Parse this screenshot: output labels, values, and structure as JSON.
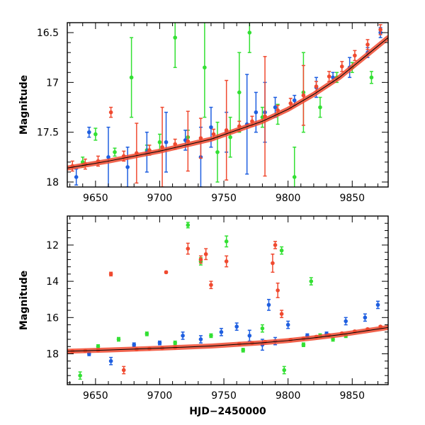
{
  "colors": {
    "green": "#33e033",
    "blue": "#1f5fe0",
    "red": "#f04a30",
    "axis": "#000000",
    "background": "#ffffff"
  },
  "chart_data": [
    {
      "type": "scatter",
      "panel": "top",
      "title": "",
      "xlabel": "",
      "ylabel": "Magnitude",
      "xlim": [
        9628,
        9878
      ],
      "ylim": [
        18.05,
        16.4
      ],
      "y_inverted": true,
      "xticks": [
        9650,
        9700,
        9750,
        9800,
        9850
      ],
      "xtick_labels": [
        "9650",
        "9700",
        "9750",
        "9800",
        "9850"
      ],
      "yticks": [
        16.5,
        17,
        17.5,
        18
      ],
      "ytick_labels": [
        "16.5",
        "17",
        "17.5",
        "18"
      ],
      "grid": false,
      "trend_curve": [
        [
          9628,
          17.86
        ],
        [
          9660,
          17.79
        ],
        [
          9700,
          17.69
        ],
        [
          9740,
          17.57
        ],
        [
          9780,
          17.39
        ],
        [
          9800,
          17.27
        ],
        [
          9820,
          17.12
        ],
        [
          9840,
          16.95
        ],
        [
          9860,
          16.74
        ],
        [
          9878,
          16.55
        ]
      ],
      "series": [
        {
          "name": "green",
          "color": "#33e033",
          "x": [
            9640,
            9650,
            9665,
            9678,
            9690,
            9700,
            9712,
            9722,
            9735,
            9745,
            9755,
            9762,
            9770,
            9780,
            9792,
            9805,
            9812,
            9825,
            9838,
            9850,
            9865
          ],
          "y": [
            17.8,
            17.52,
            17.7,
            16.95,
            17.68,
            17.6,
            16.55,
            17.55,
            16.85,
            17.7,
            17.55,
            17.1,
            16.5,
            17.35,
            17.32,
            17.95,
            17.1,
            17.25,
            16.95,
            16.85,
            16.95
          ],
          "yerr": [
            0.05,
            0.06,
            0.04,
            0.4,
            0.05,
            0.08,
            0.3,
            0.07,
            0.5,
            0.3,
            0.2,
            0.4,
            0.2,
            0.1,
            0.1,
            0.3,
            0.4,
            0.1,
            0.05,
            0.05,
            0.06
          ]
        },
        {
          "name": "blue",
          "color": "#1f5fe0",
          "x": [
            9635,
            9645,
            9660,
            9675,
            9690,
            9705,
            9720,
            9732,
            9740,
            9752,
            9768,
            9775,
            9782,
            9790,
            9805,
            9822,
            9835,
            9848,
            9862,
            9872
          ],
          "y": [
            17.95,
            17.5,
            17.75,
            17.85,
            17.7,
            17.6,
            17.58,
            17.75,
            17.45,
            17.5,
            17.42,
            17.3,
            17.3,
            17.25,
            17.18,
            17.05,
            16.95,
            16.85,
            16.7,
            16.5
          ],
          "yerr": [
            0.08,
            0.05,
            0.3,
            0.2,
            0.2,
            0.3,
            0.1,
            0.3,
            0.2,
            0.2,
            0.5,
            0.2,
            0.3,
            0.1,
            0.05,
            0.1,
            0.05,
            0.1,
            0.05,
            0.05
          ]
        },
        {
          "name": "red",
          "color": "#f04a30",
          "x": [
            9632,
            9642,
            9652,
            9662,
            9672,
            9682,
            9692,
            9702,
            9712,
            9722,
            9732,
            9742,
            9752,
            9762,
            9772,
            9782,
            9792,
            9802,
            9812,
            9822,
            9832,
            9842,
            9852,
            9862,
            9872
          ],
          "y": [
            17.84,
            17.82,
            17.79,
            17.3,
            17.74,
            17.71,
            17.68,
            17.65,
            17.62,
            17.59,
            17.56,
            17.52,
            17.48,
            17.44,
            17.39,
            17.34,
            17.28,
            17.21,
            17.13,
            17.04,
            16.94,
            16.84,
            16.73,
            16.62,
            16.47
          ],
          "yerr": [
            0.05,
            0.05,
            0.05,
            0.05,
            0.05,
            0.3,
            0.05,
            0.4,
            0.05,
            0.3,
            0.2,
            0.05,
            0.5,
            0.05,
            0.05,
            0.6,
            0.05,
            0.05,
            0.3,
            0.05,
            0.05,
            0.05,
            0.05,
            0.05,
            0.05
          ]
        }
      ]
    },
    {
      "type": "scatter",
      "panel": "bottom",
      "title": "",
      "xlabel": "HJD−2450000",
      "ylabel": "Magnitude",
      "xlim": [
        9628,
        9878
      ],
      "ylim": [
        19.7,
        10.4
      ],
      "y_inverted": true,
      "xticks": [
        9650,
        9700,
        9750,
        9800,
        9850
      ],
      "xtick_labels": [
        "9650",
        "9700",
        "9750",
        "9800",
        "9850"
      ],
      "yticks": [
        12,
        14,
        16,
        18
      ],
      "ytick_labels": [
        "12",
        "14",
        "16",
        "18"
      ],
      "grid": false,
      "trend_curve": [
        [
          9628,
          17.86
        ],
        [
          9660,
          17.79
        ],
        [
          9700,
          17.69
        ],
        [
          9740,
          17.57
        ],
        [
          9780,
          17.39
        ],
        [
          9800,
          17.27
        ],
        [
          9820,
          17.12
        ],
        [
          9840,
          16.95
        ],
        [
          9860,
          16.74
        ],
        [
          9878,
          16.55
        ]
      ],
      "series": [
        {
          "name": "green",
          "color": "#33e033",
          "x": [
            9638,
            9652,
            9668,
            9690,
            9712,
            9722,
            9732,
            9740,
            9752,
            9765,
            9780,
            9795,
            9797,
            9812,
            9818,
            9825,
            9835,
            9845
          ],
          "y": [
            19.2,
            17.6,
            17.2,
            16.9,
            17.4,
            10.9,
            12.9,
            17.0,
            11.8,
            17.8,
            16.6,
            12.3,
            18.9,
            17.5,
            14.0,
            17.0,
            17.2,
            17.0
          ],
          "yerr": [
            0.2,
            0.1,
            0.1,
            0.1,
            0.1,
            0.15,
            0.2,
            0.1,
            0.3,
            0.1,
            0.2,
            0.2,
            0.2,
            0.1,
            0.2,
            0.1,
            0.1,
            0.1
          ]
        },
        {
          "name": "blue",
          "color": "#1f5fe0",
          "x": [
            9645,
            9662,
            9680,
            9700,
            9718,
            9732,
            9748,
            9760,
            9770,
            9780,
            9785,
            9790,
            9800,
            9815,
            9830,
            9845,
            9860,
            9870
          ],
          "y": [
            18.0,
            18.4,
            17.5,
            17.4,
            17.0,
            17.2,
            16.8,
            16.5,
            17.0,
            17.5,
            15.3,
            17.3,
            16.4,
            17.0,
            16.9,
            16.2,
            16.0,
            15.3
          ],
          "yerr": [
            0.1,
            0.2,
            0.1,
            0.1,
            0.2,
            0.2,
            0.2,
            0.2,
            0.3,
            0.3,
            0.3,
            0.2,
            0.2,
            0.1,
            0.1,
            0.2,
            0.2,
            0.2
          ]
        },
        {
          "name": "red",
          "color": "#f04a30",
          "x": [
            9632,
            9642,
            9652,
            9662,
            9672,
            9682,
            9692,
            9702,
            9705,
            9712,
            9722,
            9732,
            9736,
            9740,
            9752,
            9762,
            9772,
            9782,
            9788,
            9790,
            9792,
            9795,
            9802,
            9812,
            9822,
            9832,
            9842,
            9852,
            9862,
            9872
          ],
          "y": [
            17.86,
            17.84,
            17.81,
            13.6,
            18.9,
            17.75,
            17.72,
            17.69,
            13.5,
            17.65,
            12.2,
            12.8,
            12.5,
            14.2,
            12.9,
            17.45,
            17.4,
            17.34,
            13.0,
            12.0,
            14.5,
            15.8,
            17.23,
            17.15,
            17.06,
            16.97,
            16.87,
            16.76,
            16.64,
            16.5
          ],
          "yerr": [
            0.05,
            0.05,
            0.05,
            0.1,
            0.2,
            0.05,
            0.05,
            0.05,
            0.05,
            0.05,
            0.3,
            0.2,
            0.3,
            0.2,
            0.3,
            0.05,
            0.05,
            0.05,
            0.5,
            0.2,
            0.4,
            0.2,
            0.05,
            0.05,
            0.05,
            0.05,
            0.05,
            0.05,
            0.05,
            0.05
          ]
        }
      ]
    }
  ]
}
